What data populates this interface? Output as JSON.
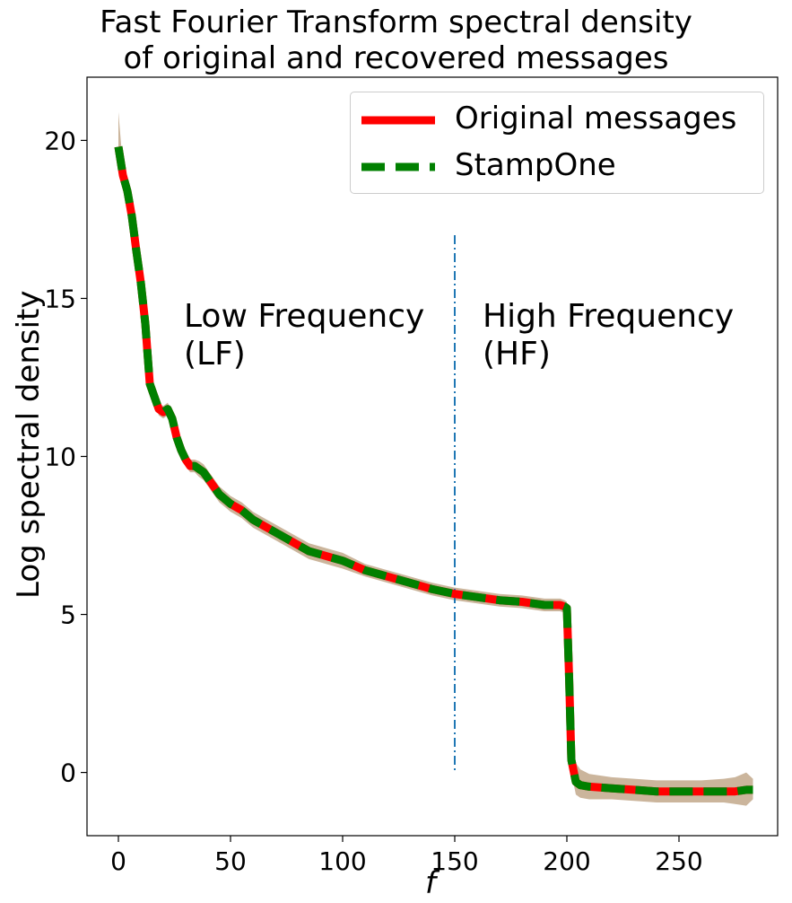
{
  "chart_data": {
    "type": "line",
    "title_lines": [
      "Fast Fourier Transform spectral density",
      "of original and recovered messages"
    ],
    "xlabel": "f",
    "ylabel": "Log spectral density",
    "xlim": [
      -14,
      294
    ],
    "ylim": [
      -2,
      22
    ],
    "xticks": [
      0,
      50,
      100,
      150,
      200,
      250
    ],
    "yticks": [
      0,
      5,
      10,
      15,
      20
    ],
    "grid": false,
    "legend_position": "top-right",
    "colors": {
      "original": "#ff0000",
      "stampone": "#008000",
      "band": "#a0784a",
      "divider": "#1f77b4"
    },
    "series": [
      {
        "name": "Original messages",
        "style": "solid",
        "x": [
          0,
          2,
          4,
          6,
          8,
          10,
          12,
          14,
          16,
          18,
          20,
          22,
          24,
          26,
          28,
          30,
          32,
          34,
          36,
          38,
          40,
          42,
          45,
          50,
          55,
          60,
          65,
          70,
          75,
          80,
          85,
          90,
          95,
          100,
          110,
          120,
          130,
          140,
          150,
          160,
          170,
          180,
          190,
          197,
          199,
          200,
          201,
          202,
          204,
          206,
          210,
          220,
          230,
          240,
          250,
          260,
          270,
          275,
          280,
          283
        ],
        "y": [
          19.8,
          18.9,
          18.4,
          17.6,
          16.5,
          15.5,
          14.2,
          12.3,
          11.9,
          11.5,
          11.4,
          11.5,
          11.2,
          10.6,
          10.2,
          9.9,
          9.7,
          9.7,
          9.6,
          9.5,
          9.3,
          9.1,
          8.8,
          8.5,
          8.3,
          8.0,
          7.8,
          7.6,
          7.4,
          7.2,
          7.0,
          6.9,
          6.8,
          6.7,
          6.4,
          6.2,
          6.0,
          5.8,
          5.65,
          5.55,
          5.45,
          5.4,
          5.3,
          5.3,
          5.25,
          5.2,
          3.0,
          0.4,
          -0.3,
          -0.4,
          -0.45,
          -0.5,
          -0.55,
          -0.6,
          -0.6,
          -0.6,
          -0.6,
          -0.6,
          -0.55,
          -0.55
        ]
      },
      {
        "name": "StampOne",
        "style": "dashed",
        "x": [
          0,
          2,
          4,
          6,
          8,
          10,
          12,
          14,
          16,
          18,
          20,
          22,
          24,
          26,
          28,
          30,
          32,
          34,
          36,
          38,
          40,
          42,
          45,
          50,
          55,
          60,
          65,
          70,
          75,
          80,
          85,
          90,
          95,
          100,
          110,
          120,
          130,
          140,
          150,
          160,
          170,
          180,
          190,
          197,
          199,
          200,
          201,
          202,
          204,
          206,
          210,
          220,
          230,
          240,
          250,
          260,
          270,
          275,
          280,
          283
        ],
        "y": [
          19.8,
          18.9,
          18.4,
          17.6,
          16.5,
          15.5,
          14.2,
          12.3,
          11.9,
          11.5,
          11.4,
          11.5,
          11.2,
          10.6,
          10.2,
          9.9,
          9.7,
          9.7,
          9.6,
          9.5,
          9.3,
          9.1,
          8.8,
          8.5,
          8.3,
          8.0,
          7.8,
          7.6,
          7.4,
          7.2,
          7.0,
          6.9,
          6.8,
          6.7,
          6.4,
          6.2,
          6.0,
          5.8,
          5.65,
          5.55,
          5.45,
          5.4,
          5.3,
          5.3,
          5.25,
          5.2,
          3.0,
          0.4,
          -0.3,
          -0.4,
          -0.45,
          -0.5,
          -0.55,
          -0.6,
          -0.6,
          -0.6,
          -0.6,
          -0.6,
          -0.55,
          -0.55
        ]
      }
    ],
    "band": {
      "x": [
        0,
        2,
        4,
        6,
        8,
        10,
        12,
        14,
        16,
        18,
        20,
        22,
        24,
        26,
        28,
        30,
        32,
        34,
        36,
        38,
        40,
        42,
        45,
        50,
        55,
        60,
        65,
        70,
        75,
        80,
        85,
        90,
        95,
        100,
        110,
        120,
        130,
        140,
        150,
        160,
        170,
        180,
        190,
        197,
        199,
        200,
        201,
        202,
        204,
        206,
        210,
        220,
        230,
        240,
        250,
        260,
        270,
        275,
        280,
        283
      ],
      "upper": [
        20.9,
        19.2,
        18.6,
        17.8,
        16.7,
        15.7,
        14.4,
        12.5,
        12.1,
        11.7,
        11.6,
        11.7,
        11.4,
        10.8,
        10.4,
        10.1,
        9.9,
        9.9,
        9.85,
        9.75,
        9.55,
        9.35,
        9.05,
        8.75,
        8.55,
        8.25,
        8.05,
        7.85,
        7.65,
        7.45,
        7.25,
        7.15,
        7.05,
        6.95,
        6.6,
        6.4,
        6.2,
        6.0,
        5.85,
        5.75,
        5.65,
        5.6,
        5.5,
        5.5,
        5.45,
        5.4,
        3.2,
        0.8,
        0.3,
        0.1,
        -0.05,
        -0.15,
        -0.2,
        -0.25,
        -0.25,
        -0.25,
        -0.2,
        -0.15,
        0.0,
        -0.2
      ],
      "lower": [
        19.6,
        18.6,
        18.2,
        17.4,
        16.3,
        15.3,
        14.0,
        12.1,
        11.7,
        11.3,
        11.2,
        11.3,
        11.0,
        10.4,
        10.0,
        9.7,
        9.5,
        9.5,
        9.35,
        9.25,
        9.05,
        8.85,
        8.55,
        8.25,
        8.05,
        7.75,
        7.55,
        7.35,
        7.15,
        6.95,
        6.75,
        6.65,
        6.55,
        6.45,
        6.2,
        6.0,
        5.8,
        5.6,
        5.45,
        5.35,
        5.25,
        5.2,
        5.1,
        5.1,
        5.05,
        5.0,
        2.8,
        0.0,
        -0.7,
        -0.8,
        -0.85,
        -0.85,
        -0.9,
        -0.95,
        -0.95,
        -0.95,
        -0.95,
        -1.0,
        -1.05,
        -0.85
      ]
    },
    "divider": {
      "x": 150,
      "y_from": 0,
      "y_to": 17
    },
    "annotations": [
      {
        "lines": [
          "Low Frequency",
          "(LF)"
        ],
        "x": 30,
        "y": 14.5
      },
      {
        "lines": [
          "High Frequency",
          "(HF)"
        ],
        "x": 163,
        "y": 14.5
      }
    ]
  }
}
